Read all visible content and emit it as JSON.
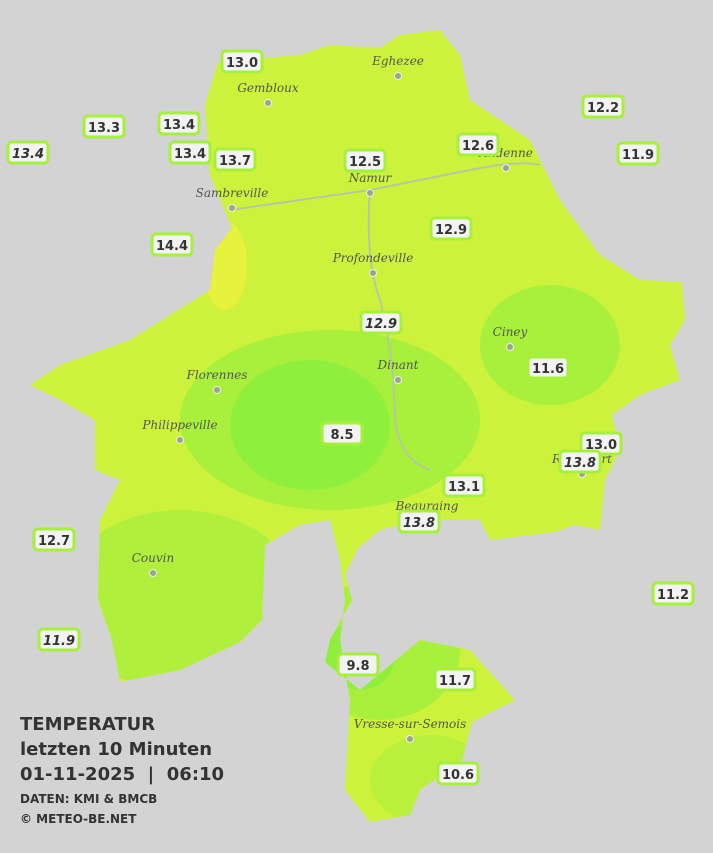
{
  "legend": {
    "title": "TEMPERATUR",
    "period": "letzten 10 Minuten",
    "datetime": "01-11-2025  |  06:10",
    "source": "DATEN: KMI & BMCB",
    "copyright": "© METEO-BE.NET"
  },
  "cities": [
    "Eghezee",
    "Gembloux",
    "Andenne",
    "Namur",
    "Sambreville",
    "Profondeville",
    "Ciney",
    "Dinant",
    "Florennes",
    "Philippeville",
    "Beauraing",
    "Rochefort",
    "Couvin",
    "Vresse-sur-Semois"
  ],
  "stations": [
    {
      "label": "13.0"
    },
    {
      "label": "13.3"
    },
    {
      "label": "13.4",
      "italic": true
    },
    {
      "label": "13.4"
    },
    {
      "label": "13.4"
    },
    {
      "label": "13.7"
    },
    {
      "label": "12.5"
    },
    {
      "label": "12.6"
    },
    {
      "label": "12.2"
    },
    {
      "label": "11.9"
    },
    {
      "label": "14.4"
    },
    {
      "label": "12.9"
    },
    {
      "label": "12.9",
      "italic": true
    },
    {
      "label": "11.6"
    },
    {
      "label": "8.5"
    },
    {
      "label": "13.0"
    },
    {
      "label": "13.8",
      "italic": true
    },
    {
      "label": "13.1"
    },
    {
      "label": "13.8",
      "italic": true
    },
    {
      "label": "12.7"
    },
    {
      "label": "11.2"
    },
    {
      "label": "11.9",
      "italic": true
    },
    {
      "label": "9.8"
    },
    {
      "label": "11.7"
    },
    {
      "label": "10.6"
    }
  ]
}
